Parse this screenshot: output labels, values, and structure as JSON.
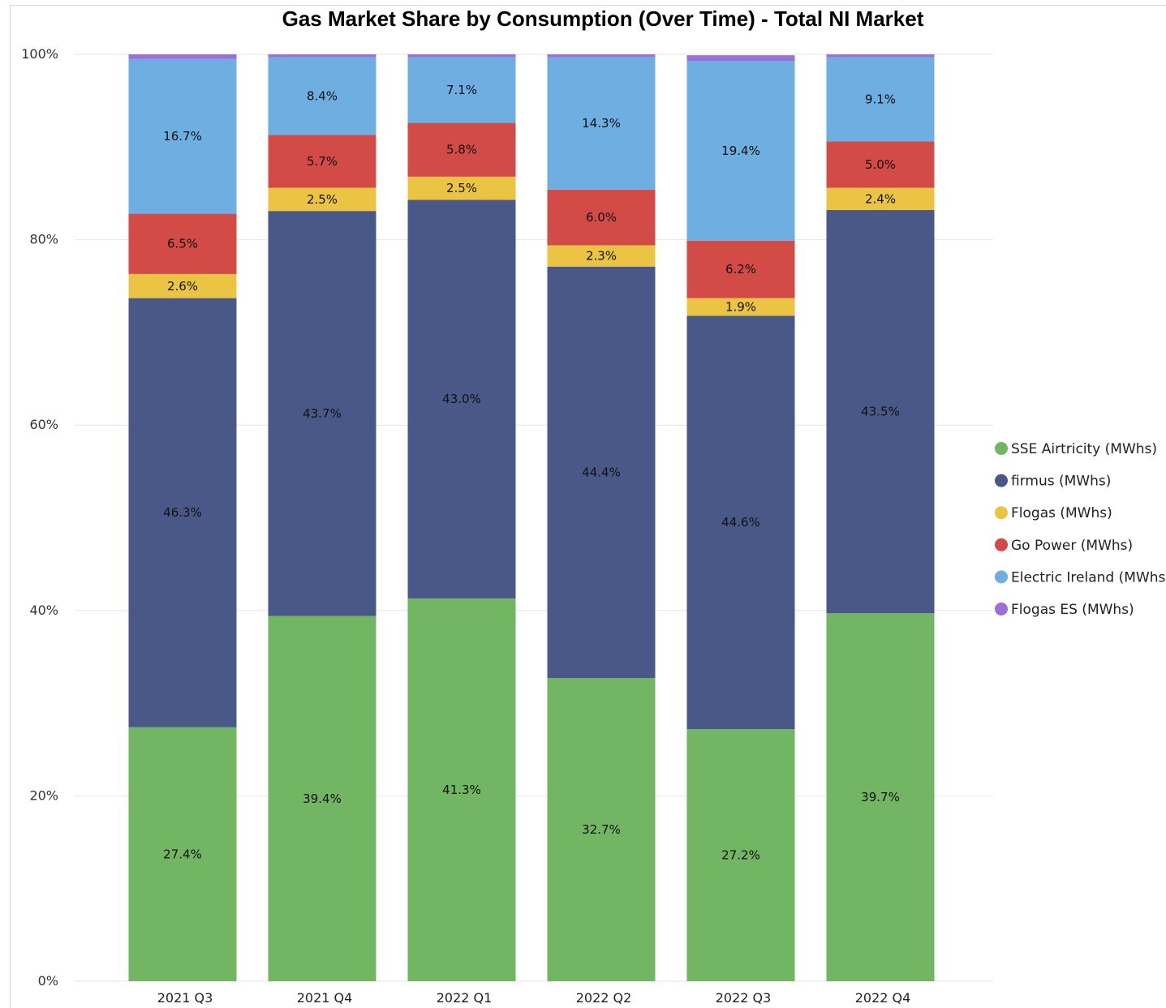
{
  "chart_data": {
    "type": "bar",
    "stacked": true,
    "title": "Gas Market Share by Consumption (Over Time) - Total NI Market",
    "xlabel": "",
    "ylabel": "",
    "ylim": [
      0,
      100
    ],
    "y_ticks": [
      "0%",
      "20%",
      "40%",
      "60%",
      "80%",
      "100%"
    ],
    "grid": true,
    "legend_position": "right",
    "categories": [
      "2021 Q3",
      "2021 Q4",
      "2022 Q1",
      "2022 Q2",
      "2022 Q3",
      "2022 Q4"
    ],
    "series": [
      {
        "name": "SSE Airtricity (MWhs)",
        "color": "#72b562",
        "values": [
          27.4,
          39.4,
          41.3,
          32.7,
          27.2,
          39.7
        ],
        "labels": [
          "27.4%",
          "39.4%",
          "41.3%",
          "32.7%",
          "27.2%",
          "39.7%"
        ]
      },
      {
        "name": "firmus (MWhs)",
        "color": "#4a5888",
        "values": [
          46.3,
          43.7,
          43.0,
          44.4,
          44.6,
          43.5
        ],
        "labels": [
          "46.3%",
          "43.7%",
          "43.0%",
          "44.4%",
          "44.6%",
          "43.5%"
        ]
      },
      {
        "name": "Flogas (MWhs)",
        "color": "#ecc444",
        "values": [
          2.6,
          2.5,
          2.5,
          2.3,
          1.9,
          2.4
        ],
        "labels": [
          "2.6%",
          "2.5%",
          "2.5%",
          "2.3%",
          "1.9%",
          "2.4%"
        ]
      },
      {
        "name": "Go Power (MWhs)",
        "color": "#d24b46",
        "values": [
          6.5,
          5.7,
          5.8,
          6.0,
          6.2,
          5.0
        ],
        "labels": [
          "6.5%",
          "5.7%",
          "5.8%",
          "6.0%",
          "6.2%",
          "5.0%"
        ]
      },
      {
        "name": "Electric Ireland (MWhs)",
        "color": "#6eaee0",
        "values": [
          16.7,
          8.4,
          7.1,
          14.3,
          19.4,
          9.1
        ],
        "labels": [
          "16.7%",
          "8.4%",
          "7.1%",
          "14.3%",
          "19.4%",
          "9.1%"
        ]
      },
      {
        "name": "Flogas ES (MWhs)",
        "color": "#9b70d8",
        "values": [
          0.5,
          0.3,
          0.3,
          0.3,
          0.6,
          0.3
        ],
        "labels": [
          "",
          "",
          "",
          "",
          "",
          ""
        ]
      }
    ]
  }
}
